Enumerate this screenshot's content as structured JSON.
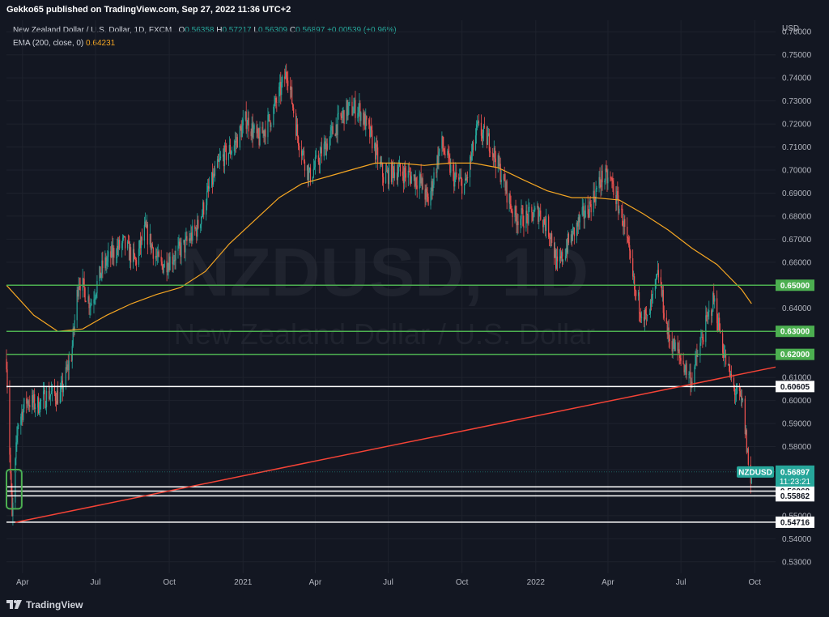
{
  "header": {
    "published": "Gekko65 published on TradingView.com, Sep 27, 2022 11:36 UTC+2"
  },
  "legend": {
    "instrument": "New Zealand Dollar / U.S. Dollar, 1D, FXCM",
    "o_label": "O",
    "o_value": "0.56358",
    "h_label": "H",
    "h_value": "0.57217",
    "l_label": "L",
    "l_value": "0.56309",
    "c_label": "C",
    "c_value": "0.56897",
    "change": "+0.00539 (+0.96%)",
    "ema_label": "EMA (200, close, 0)",
    "ema_value": "0.64231"
  },
  "watermark": {
    "symbol": "NZDUSD, 1D",
    "description": "New Zealand Dollar / U.S. Dollar"
  },
  "footer": {
    "brand": "TradingView",
    "logo_icon": "tradingview-logo-icon"
  },
  "colors": {
    "background": "#131722",
    "grid": "#1e222d",
    "up": "#26a69a",
    "down": "#ef5350",
    "ema": "#f5a623",
    "green_level": "#4caf50",
    "white_level": "#ffffff",
    "trendline": "#f44336",
    "price_tag": "#26a69a"
  },
  "chart_data": {
    "type": "candlestick",
    "symbol": "NZDUSD",
    "timeframe": "1D",
    "currency": "USD",
    "ylim": [
      0.525,
      0.765
    ],
    "xlim": [
      "2020-03-12",
      "2022-10-27"
    ],
    "y_ticks": [
      "0.53000",
      "0.54000",
      "0.55000",
      "0.56000",
      "0.57000",
      "0.58000",
      "0.59000",
      "0.60000",
      "0.61000",
      "0.62000",
      "0.63000",
      "0.64000",
      "0.65000",
      "0.66000",
      "0.67000",
      "0.68000",
      "0.69000",
      "0.70000",
      "0.71000",
      "0.72000",
      "0.73000",
      "0.74000",
      "0.75000",
      "0.76000"
    ],
    "x_ticks": [
      {
        "label": "Apr",
        "date": "2020-04-01"
      },
      {
        "label": "Jul",
        "date": "2020-07-01"
      },
      {
        "label": "Oct",
        "date": "2020-10-01"
      },
      {
        "label": "2021",
        "date": "2021-01-01"
      },
      {
        "label": "Apr",
        "date": "2021-04-01"
      },
      {
        "label": "Jul",
        "date": "2021-07-01"
      },
      {
        "label": "Oct",
        "date": "2021-10-01"
      },
      {
        "label": "2022",
        "date": "2022-01-01"
      },
      {
        "label": "Apr",
        "date": "2022-04-01"
      },
      {
        "label": "Jul",
        "date": "2022-07-01"
      },
      {
        "label": "Oct",
        "date": "2022-10-01"
      }
    ],
    "price_path": [
      [
        "2020-03-12",
        0.618
      ],
      [
        "2020-03-19",
        0.548
      ],
      [
        "2020-03-26",
        0.59
      ],
      [
        "2020-04-06",
        0.6
      ],
      [
        "2020-04-20",
        0.598
      ],
      [
        "2020-05-04",
        0.603
      ],
      [
        "2020-05-18",
        0.602
      ],
      [
        "2020-06-01",
        0.62
      ],
      [
        "2020-06-10",
        0.653
      ],
      [
        "2020-06-25",
        0.642
      ],
      [
        "2020-07-10",
        0.658
      ],
      [
        "2020-07-25",
        0.665
      ],
      [
        "2020-08-05",
        0.668
      ],
      [
        "2020-08-20",
        0.66
      ],
      [
        "2020-09-01",
        0.674
      ],
      [
        "2020-09-20",
        0.658
      ],
      [
        "2020-10-05",
        0.662
      ],
      [
        "2020-10-20",
        0.667
      ],
      [
        "2020-11-05",
        0.675
      ],
      [
        "2020-11-20",
        0.692
      ],
      [
        "2020-12-05",
        0.705
      ],
      [
        "2020-12-20",
        0.71
      ],
      [
        "2021-01-05",
        0.722
      ],
      [
        "2021-01-20",
        0.713
      ],
      [
        "2021-02-05",
        0.723
      ],
      [
        "2021-02-25",
        0.743
      ],
      [
        "2021-03-10",
        0.715
      ],
      [
        "2021-03-25",
        0.697
      ],
      [
        "2021-04-10",
        0.708
      ],
      [
        "2021-04-25",
        0.718
      ],
      [
        "2021-05-10",
        0.726
      ],
      [
        "2021-05-25",
        0.727
      ],
      [
        "2021-06-10",
        0.714
      ],
      [
        "2021-06-25",
        0.697
      ],
      [
        "2021-07-10",
        0.7
      ],
      [
        "2021-07-25",
        0.698
      ],
      [
        "2021-08-10",
        0.695
      ],
      [
        "2021-08-20",
        0.686
      ],
      [
        "2021-09-05",
        0.712
      ],
      [
        "2021-09-20",
        0.697
      ],
      [
        "2021-10-05",
        0.693
      ],
      [
        "2021-10-20",
        0.718
      ],
      [
        "2021-11-05",
        0.712
      ],
      [
        "2021-11-20",
        0.697
      ],
      [
        "2021-12-05",
        0.68
      ],
      [
        "2021-12-20",
        0.679
      ],
      [
        "2022-01-05",
        0.682
      ],
      [
        "2022-01-20",
        0.672
      ],
      [
        "2022-01-28",
        0.657
      ],
      [
        "2022-02-10",
        0.668
      ],
      [
        "2022-02-25",
        0.678
      ],
      [
        "2022-03-10",
        0.685
      ],
      [
        "2022-03-25",
        0.697
      ],
      [
        "2022-04-05",
        0.695
      ],
      [
        "2022-04-20",
        0.678
      ],
      [
        "2022-05-05",
        0.646
      ],
      [
        "2022-05-20",
        0.634
      ],
      [
        "2022-06-03",
        0.655
      ],
      [
        "2022-06-15",
        0.628
      ],
      [
        "2022-07-01",
        0.618
      ],
      [
        "2022-07-14",
        0.609
      ],
      [
        "2022-07-28",
        0.628
      ],
      [
        "2022-08-11",
        0.644
      ],
      [
        "2022-08-25",
        0.618
      ],
      [
        "2022-09-05",
        0.605
      ],
      [
        "2022-09-16",
        0.598
      ],
      [
        "2022-09-26",
        0.563
      ],
      [
        "2022-09-27",
        0.569
      ]
    ],
    "ema200_path": [
      [
        "2020-03-12",
        0.65
      ],
      [
        "2020-04-15",
        0.637
      ],
      [
        "2020-05-15",
        0.63
      ],
      [
        "2020-06-15",
        0.631
      ],
      [
        "2020-07-15",
        0.637
      ],
      [
        "2020-08-15",
        0.642
      ],
      [
        "2020-09-15",
        0.646
      ],
      [
        "2020-10-15",
        0.649
      ],
      [
        "2020-11-15",
        0.656
      ],
      [
        "2020-12-15",
        0.668
      ],
      [
        "2021-01-15",
        0.678
      ],
      [
        "2021-02-15",
        0.688
      ],
      [
        "2021-03-15",
        0.694
      ],
      [
        "2021-04-15",
        0.697
      ],
      [
        "2021-05-15",
        0.7
      ],
      [
        "2021-06-15",
        0.703
      ],
      [
        "2021-07-15",
        0.703
      ],
      [
        "2021-08-15",
        0.702
      ],
      [
        "2021-09-15",
        0.703
      ],
      [
        "2021-10-15",
        0.703
      ],
      [
        "2021-11-15",
        0.701
      ],
      [
        "2021-12-15",
        0.696
      ],
      [
        "2022-01-15",
        0.691
      ],
      [
        "2022-02-15",
        0.688
      ],
      [
        "2022-03-15",
        0.688
      ],
      [
        "2022-04-15",
        0.687
      ],
      [
        "2022-05-15",
        0.681
      ],
      [
        "2022-06-15",
        0.674
      ],
      [
        "2022-07-15",
        0.666
      ],
      [
        "2022-08-15",
        0.659
      ],
      [
        "2022-09-15",
        0.648
      ],
      [
        "2022-09-27",
        0.642
      ]
    ],
    "horizontal_levels": [
      {
        "price": 0.65,
        "label": "0.65000",
        "color": "green"
      },
      {
        "price": 0.63,
        "label": "0.63000",
        "color": "green"
      },
      {
        "price": 0.62,
        "label": "0.62000",
        "color": "green"
      },
      {
        "price": 0.60605,
        "label": "0.60605",
        "color": "white"
      },
      {
        "price": 0.56251,
        "label": "0.56251",
        "color": "white"
      },
      {
        "price": 0.56068,
        "label": "0.56068",
        "color": "white"
      },
      {
        "price": 0.55862,
        "label": "0.55862",
        "color": "white"
      },
      {
        "price": 0.54716,
        "label": "0.54716",
        "color": "white"
      }
    ],
    "trendline": {
      "from": [
        "2020-03-23",
        0.5471
      ],
      "to": [
        "2022-10-27",
        0.6145
      ]
    },
    "last_price": {
      "symbol": "NZDUSD",
      "price": 0.56897,
      "label": "0.56897",
      "countdown": "11:23:21"
    },
    "highlight_box": {
      "from": [
        "2020-03-12",
        0.553
      ],
      "to": [
        "2020-03-31",
        0.57
      ],
      "color": "green"
    }
  }
}
